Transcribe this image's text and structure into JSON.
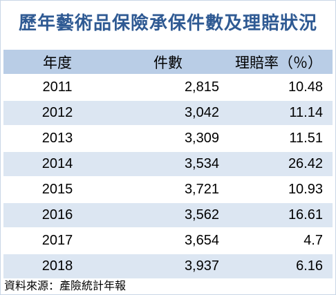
{
  "title": "歷年藝術品保險承保件數及理賠狀況",
  "chart_data": {
    "type": "table",
    "headers": [
      "年度",
      "件數",
      "理賠率（％）"
    ],
    "rows": [
      [
        "2011",
        "2,815",
        "10.48"
      ],
      [
        "2012",
        "3,042",
        "11.14"
      ],
      [
        "2013",
        "3,309",
        "11.51"
      ],
      [
        "2014",
        "3,534",
        "26.42"
      ],
      [
        "2015",
        "3,721",
        "10.93"
      ],
      [
        "2016",
        "3,562",
        "16.61"
      ],
      [
        "2017",
        "3,654",
        "4.7"
      ],
      [
        "2018",
        "3,937",
        "6.16"
      ]
    ]
  },
  "source": "資料來源：產險統計年報",
  "colors": {
    "title": "#2f5a93",
    "header_bg": "#b9cde6",
    "stripe_bg": "#dce6f2"
  }
}
